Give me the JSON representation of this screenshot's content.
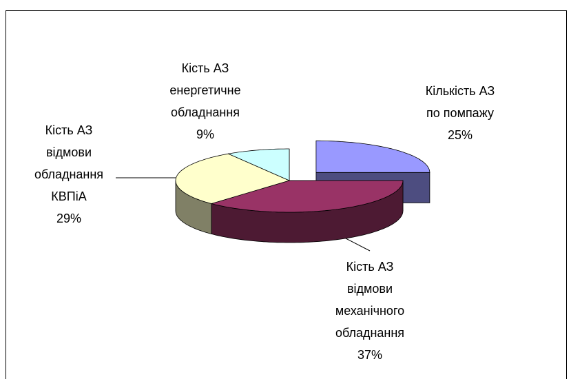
{
  "chart_data": {
    "type": "pie3d",
    "categories": [
      "Кількість АЗ\nпо помпажу",
      "Кість АЗ\nвідмови\nмеханічного\nобладнання",
      "Кість АЗ\nвідмови\nобладнання\nКВПіА",
      "Кість АЗ\nенергетичне\nобладнання"
    ],
    "values": [
      25,
      37,
      29,
      9
    ],
    "value_labels": [
      "25%",
      "37%",
      "29%",
      "9%"
    ],
    "colors": [
      "#9999ff",
      "#993366",
      "#ffffcc",
      "#ccffff"
    ],
    "exploded": [
      true,
      false,
      false,
      false
    ]
  }
}
